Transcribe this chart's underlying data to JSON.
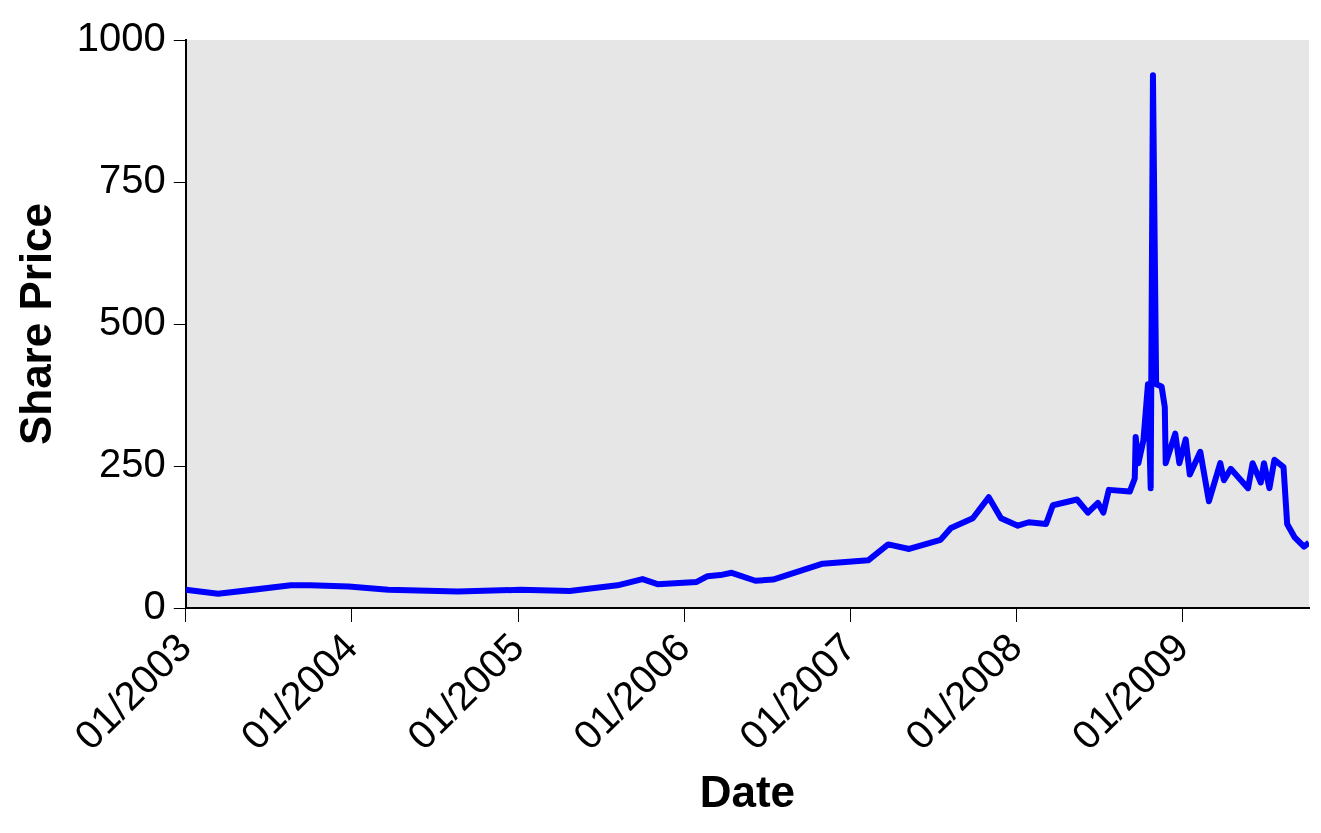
{
  "chart_data": {
    "type": "line",
    "xlabel": "Date",
    "ylabel": "Share Price",
    "x": [
      "2003-01-01",
      "2003-03-13",
      "2003-08-20",
      "2003-10-01",
      "2003-12-25",
      "2004-03-21",
      "2004-08-21",
      "2005-01-05",
      "2005-04-24",
      "2005-08-07",
      "2005-10-01",
      "2005-11-03",
      "2006-01-28",
      "2006-02-21",
      "2006-03-21",
      "2006-04-15",
      "2006-06-06",
      "2006-07-15",
      "2006-11-01",
      "2007-02-09",
      "2007-03-25",
      "2007-05-10",
      "2007-07-18",
      "2007-08-10",
      "2007-09-27",
      "2007-11-01",
      "2007-11-28",
      "2008-01-04",
      "2008-01-28",
      "2008-03-06",
      "2008-03-21",
      "2008-05-13",
      "2008-06-06",
      "2008-06-28",
      "2008-07-10",
      "2008-07-22",
      "2008-09-06",
      "2008-09-17",
      "2008-09-19",
      "2008-09-25",
      "2008-10-06",
      "2008-10-16",
      "2008-10-22",
      "2008-10-27",
      "2008-11-03",
      "2008-11-15",
      "2008-11-22",
      "2008-11-24",
      "2008-12-15",
      "2008-12-24",
      "2009-01-07",
      "2009-01-16",
      "2009-02-08",
      "2009-02-27",
      "2009-03-24",
      "2009-04-01",
      "2009-04-16",
      "2009-05-24",
      "2009-06-03",
      "2009-06-21",
      "2009-06-28",
      "2009-07-10",
      "2009-07-21",
      "2009-08-10",
      "2009-08-18",
      "2009-09-03",
      "2009-09-24",
      "2009-10-05"
    ],
    "series": [
      {
        "color": "#0000ff",
        "values": [
          32,
          25,
          40,
          40,
          38,
          32,
          29,
          32,
          30,
          40,
          51,
          42,
          46,
          56,
          58,
          62,
          48,
          50,
          78,
          84,
          112,
          104,
          120,
          141,
          158,
          195,
          158,
          145,
          151,
          148,
          181,
          191,
          168,
          185,
          168,
          208,
          205,
          228,
          301,
          255,
          295,
          394,
          211,
          938,
          394,
          390,
          354,
          255,
          307,
          255,
          297,
          235,
          275,
          188,
          255,
          225,
          245,
          211,
          255,
          221,
          255,
          211,
          261,
          248,
          148,
          125,
          108,
          115
        ]
      }
    ],
    "xlim": [
      "2003-01-01",
      "2009-10-05"
    ],
    "xticks": [
      {
        "value": "2003-01-01",
        "label": "01/2003"
      },
      {
        "value": "2004-01-01",
        "label": "01/2004"
      },
      {
        "value": "2005-01-01",
        "label": "01/2005"
      },
      {
        "value": "2006-01-01",
        "label": "01/2006"
      },
      {
        "value": "2007-01-01",
        "label": "01/2007"
      },
      {
        "value": "2008-01-01",
        "label": "01/2008"
      },
      {
        "value": "2009-01-01",
        "label": "01/2009"
      }
    ],
    "ylim": [
      0,
      1000
    ],
    "yticks": [
      0,
      250,
      500,
      750,
      1000
    ],
    "legend": false,
    "marker": "none",
    "line_style": "solid"
  }
}
